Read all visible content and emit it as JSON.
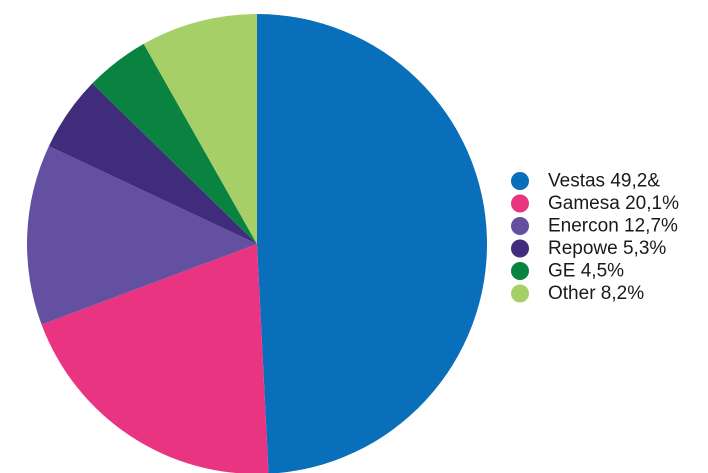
{
  "chart_data": {
    "type": "pie",
    "title": "",
    "legend_position": "right",
    "start": "12 o'clock, clockwise",
    "slices": [
      {
        "label": "Vestas 49,2&",
        "value": 49.2,
        "color": "#0a6fba"
      },
      {
        "label": "Gamesa 20,1%",
        "value": 20.1,
        "color": "#e93481"
      },
      {
        "label": "Enercon 12,7%",
        "value": 12.7,
        "color": "#6450a0"
      },
      {
        "label": "Repowe 5,3%",
        "value": 5.3,
        "color": "#3f2c7a"
      },
      {
        "label": "GE 4,5%",
        "value": 4.5,
        "color": "#0a8341"
      },
      {
        "label": "Other 8,2%",
        "value": 8.2,
        "color": "#a7cf67"
      }
    ]
  }
}
